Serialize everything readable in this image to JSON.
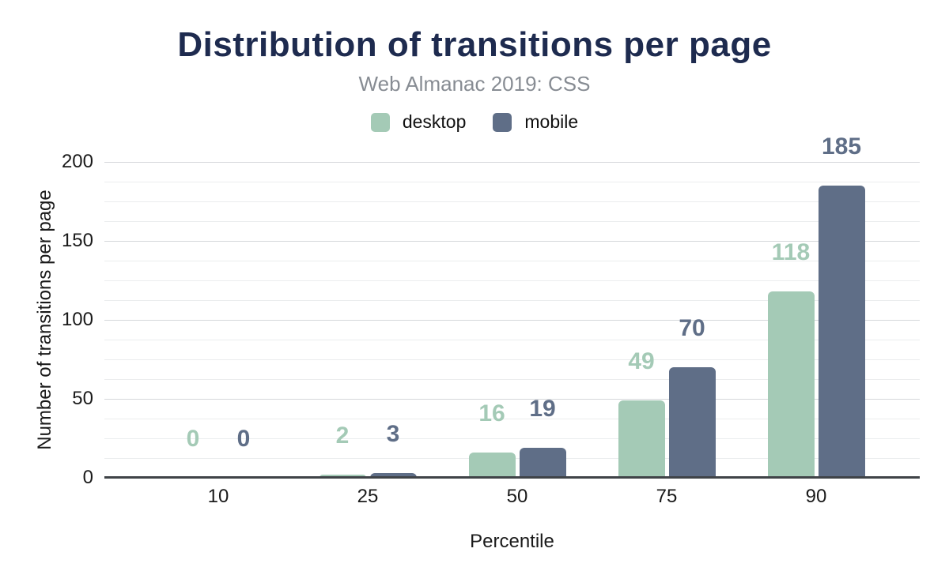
{
  "chart_data": {
    "type": "bar",
    "title": "Distribution of transitions per page",
    "subtitle": "Web Almanac 2019: CSS",
    "xlabel": "Percentile",
    "ylabel": "Number of transitions per page",
    "categories": [
      "10",
      "25",
      "50",
      "75",
      "90"
    ],
    "series": [
      {
        "name": "desktop",
        "color": "#a4cab6",
        "values": [
          0,
          2,
          16,
          49,
          118
        ]
      },
      {
        "name": "mobile",
        "color": "#5f6e87",
        "values": [
          0,
          3,
          19,
          70,
          185
        ]
      }
    ],
    "ylim": [
      0,
      200
    ],
    "y_ticks": [
      0,
      50,
      100,
      150,
      200
    ],
    "y_minor_step": 12.5,
    "grid": "horizontal-major-and-minor",
    "legend_position": "top-center",
    "data_labels": true,
    "bar_corner": "rounded-top"
  },
  "colors": {
    "title": "#1e2b4f",
    "subtitle": "#878c93",
    "axis_text": "#1a1a1a",
    "grid_major": "#d5d7da",
    "grid_minor": "#ebedee",
    "baseline": "#3f4347",
    "background": "#ffffff"
  }
}
